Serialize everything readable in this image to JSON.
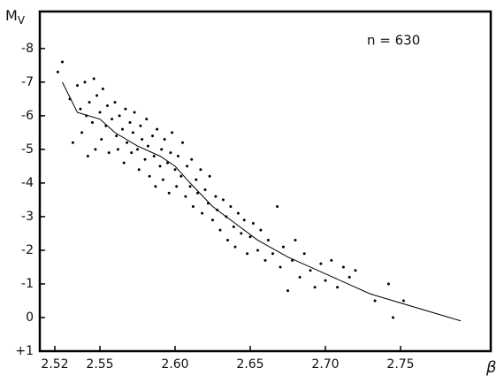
{
  "chart_data": {
    "type": "scatter",
    "ylabel": "M",
    "ylabel_subscript": "V",
    "xlabel": "β",
    "annotation": "n = 630",
    "xlim": [
      2.51,
      2.81
    ],
    "ylim": [
      1,
      -9.1
    ],
    "xticks": [
      2.52,
      2.55,
      {
        "value": 2.6,
        "label": "2.60"
      },
      2.65,
      {
        "value": 2.7,
        "label": "2.70"
      },
      2.75
    ],
    "yticks": [
      -8,
      -7,
      -6,
      -5,
      -4,
      -3,
      -2,
      -1,
      0,
      {
        "value": 1,
        "label": "+1"
      }
    ],
    "color": "#000000",
    "points": {
      "x": [
        2.522,
        2.525,
        2.53,
        2.532,
        2.535,
        2.537,
        2.538,
        2.54,
        2.541,
        2.542,
        2.543,
        2.545,
        2.546,
        2.547,
        2.548,
        2.55,
        2.551,
        2.552,
        2.554,
        2.555,
        2.556,
        2.558,
        2.56,
        2.561,
        2.562,
        2.563,
        2.565,
        2.566,
        2.567,
        2.568,
        2.57,
        2.571,
        2.572,
        2.573,
        2.575,
        2.576,
        2.577,
        2.578,
        2.58,
        2.581,
        2.582,
        2.583,
        2.585,
        2.586,
        2.587,
        2.588,
        2.59,
        2.591,
        2.592,
        2.593,
        2.595,
        2.596,
        2.597,
        2.598,
        2.6,
        2.601,
        2.602,
        2.604,
        2.605,
        2.607,
        2.608,
        2.61,
        2.611,
        2.612,
        2.614,
        2.615,
        2.617,
        2.618,
        2.62,
        2.622,
        2.623,
        2.625,
        2.627,
        2.628,
        2.63,
        2.632,
        2.634,
        2.635,
        2.637,
        2.639,
        2.64,
        2.642,
        2.644,
        2.646,
        2.648,
        2.65,
        2.652,
        2.655,
        2.657,
        2.66,
        2.662,
        2.665,
        2.668,
        2.67,
        2.672,
        2.675,
        2.678,
        2.68,
        2.683,
        2.686,
        2.69,
        2.693,
        2.697,
        2.7,
        2.704,
        2.708,
        2.712,
        2.716,
        2.72,
        2.733,
        2.742,
        2.745,
        2.752
      ],
      "y": [
        -7.3,
        -7.6,
        -6.5,
        -5.2,
        -6.9,
        -6.2,
        -5.5,
        -7.0,
        -6.0,
        -4.8,
        -6.4,
        -5.8,
        -7.1,
        -5.0,
        -6.6,
        -6.1,
        -5.3,
        -6.8,
        -5.7,
        -6.3,
        -4.9,
        -5.9,
        -6.4,
        -5.4,
        -5.0,
        -6.0,
        -5.6,
        -4.6,
        -6.2,
        -5.2,
        -5.8,
        -4.9,
        -5.5,
        -6.1,
        -5.0,
        -4.4,
        -5.7,
        -5.3,
        -4.7,
        -5.9,
        -5.1,
        -4.2,
        -5.4,
        -4.8,
        -3.9,
        -5.6,
        -4.5,
        -5.0,
        -4.1,
        -5.3,
        -4.6,
        -3.7,
        -4.9,
        -5.5,
        -4.4,
        -3.9,
        -4.8,
        -4.2,
        -5.2,
        -3.6,
        -4.5,
        -3.9,
        -4.7,
        -3.3,
        -4.1,
        -3.7,
        -4.4,
        -3.1,
        -3.8,
        -3.4,
        -4.2,
        -2.9,
        -3.6,
        -3.2,
        -2.6,
        -3.5,
        -3.0,
        -2.3,
        -3.3,
        -2.7,
        -2.1,
        -3.1,
        -2.5,
        -2.9,
        -1.9,
        -2.4,
        -2.8,
        -2.0,
        -2.6,
        -1.7,
        -2.3,
        -1.9,
        -3.3,
        -1.5,
        -2.1,
        -0.8,
        -1.7,
        -2.3,
        -1.2,
        -1.9,
        -1.4,
        -0.9,
        -1.6,
        -1.1,
        -1.7,
        -0.9,
        -1.5,
        -1.2,
        -1.4,
        -0.5,
        -1.0,
        0.0,
        -0.5
      ]
    },
    "line": {
      "x": [
        2.525,
        2.535,
        2.55,
        2.56,
        2.575,
        2.59,
        2.6,
        2.61,
        2.625,
        2.64,
        2.655,
        2.675,
        2.7,
        2.73,
        2.79
      ],
      "y": [
        -7.0,
        -6.1,
        -5.9,
        -5.5,
        -5.1,
        -4.8,
        -4.5,
        -4.0,
        -3.3,
        -2.8,
        -2.3,
        -1.8,
        -1.3,
        -0.7,
        0.1
      ]
    }
  }
}
